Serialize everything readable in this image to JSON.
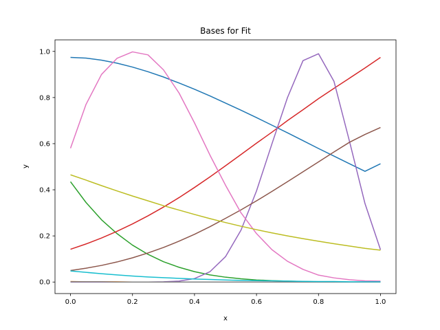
{
  "chart_data": {
    "type": "line",
    "title": "Bases for Fit",
    "xlabel": "x",
    "ylabel": "y",
    "xlim": [
      -0.05,
      1.05
    ],
    "ylim": [
      -0.05,
      1.05
    ],
    "xticks": [
      "0.0",
      "0.2",
      "0.4",
      "0.6",
      "0.8",
      "1.0"
    ],
    "yticks": [
      "0.0",
      "0.2",
      "0.4",
      "0.6",
      "0.8",
      "1.0"
    ],
    "grid": false,
    "legend": "none",
    "x": [
      0.0,
      0.05,
      0.1,
      0.15,
      0.2,
      0.25,
      0.3,
      0.35,
      0.4,
      0.45,
      0.5,
      0.55,
      0.6,
      0.65,
      0.7,
      0.75,
      0.8,
      0.85,
      0.9,
      0.95,
      1.0
    ],
    "series": [
      {
        "color": "#1f77b4",
        "values": [
          0.974,
          0.971,
          0.962,
          0.949,
          0.932,
          0.912,
          0.889,
          0.863,
          0.836,
          0.807,
          0.776,
          0.745,
          0.713,
          0.68,
          0.647,
          0.613,
          0.579,
          0.546,
          0.513,
          0.48,
          0.513
        ]
      },
      {
        "color": "#ff7f0e",
        "values": [
          0.002,
          0.001,
          0.001,
          0.001,
          0.0,
          0.0,
          0.0,
          0.0,
          0.0,
          0.0,
          0.0,
          0.0,
          0.0,
          0.0,
          0.0,
          0.0,
          0.0,
          0.0,
          0.0,
          0.0,
          0.0
        ]
      },
      {
        "color": "#2ca02c",
        "values": [
          0.435,
          0.345,
          0.27,
          0.21,
          0.16,
          0.12,
          0.088,
          0.064,
          0.045,
          0.031,
          0.021,
          0.014,
          0.009,
          0.006,
          0.004,
          0.002,
          0.001,
          0.001,
          0.0,
          0.0,
          0.0
        ]
      },
      {
        "color": "#d62728",
        "values": [
          0.142,
          0.165,
          0.191,
          0.22,
          0.252,
          0.287,
          0.325,
          0.366,
          0.41,
          0.456,
          0.504,
          0.553,
          0.602,
          0.65,
          0.7,
          0.747,
          0.795,
          0.84,
          0.884,
          0.928,
          0.974
        ]
      },
      {
        "color": "#9467bd",
        "values": [
          0.0,
          0.0,
          0.0,
          0.0,
          0.0,
          0.0,
          0.001,
          0.004,
          0.015,
          0.045,
          0.11,
          0.225,
          0.395,
          0.6,
          0.8,
          0.96,
          0.99,
          0.87,
          0.61,
          0.34,
          0.14
        ]
      },
      {
        "color": "#8c564b",
        "values": [
          0.05,
          0.06,
          0.072,
          0.087,
          0.105,
          0.126,
          0.15,
          0.177,
          0.207,
          0.24,
          0.276,
          0.313,
          0.352,
          0.393,
          0.435,
          0.478,
          0.521,
          0.564,
          0.606,
          0.64,
          0.67
        ]
      },
      {
        "color": "#e377c2",
        "values": [
          0.58,
          0.77,
          0.9,
          0.97,
          0.998,
          0.985,
          0.92,
          0.82,
          0.69,
          0.55,
          0.42,
          0.3,
          0.21,
          0.14,
          0.09,
          0.055,
          0.03,
          0.018,
          0.01,
          0.005,
          0.004
        ]
      },
      {
        "color": "#7f7f7f",
        "values": [
          0.001,
          0.001,
          0.001,
          0.0,
          0.0,
          0.0,
          0.0,
          0.0,
          0.0,
          0.0,
          0.0,
          0.0,
          0.0,
          0.0,
          0.0,
          0.0,
          0.0,
          0.0,
          0.0,
          0.0,
          0.0
        ]
      },
      {
        "color": "#bcbd22",
        "values": [
          0.465,
          0.442,
          0.418,
          0.395,
          0.373,
          0.352,
          0.331,
          0.312,
          0.293,
          0.275,
          0.258,
          0.242,
          0.227,
          0.213,
          0.2,
          0.188,
          0.177,
          0.166,
          0.156,
          0.146,
          0.138
        ]
      },
      {
        "color": "#17becf",
        "values": [
          0.048,
          0.042,
          0.036,
          0.031,
          0.026,
          0.022,
          0.019,
          0.016,
          0.013,
          0.011,
          0.009,
          0.007,
          0.006,
          0.005,
          0.004,
          0.003,
          0.002,
          0.002,
          0.001,
          0.001,
          0.001
        ]
      }
    ]
  }
}
